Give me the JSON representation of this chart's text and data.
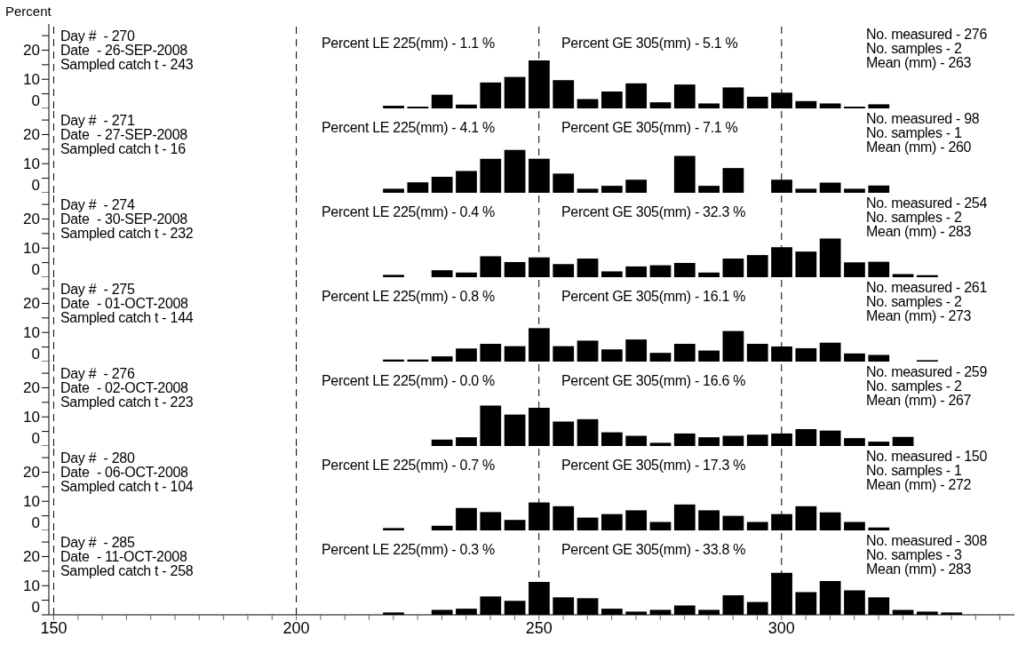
{
  "chart_data": [
    {
      "type": "histogram",
      "ylabel": "Percent",
      "bins": [
        217.5,
        222.5,
        227.5,
        232.5,
        237.5,
        242.5,
        247.5,
        252.5,
        257.5,
        262.5,
        267.5,
        272.5,
        277.5,
        282.5,
        287.5,
        292.5,
        297.5,
        302.5,
        307.5,
        312.5,
        317.5,
        322.5,
        327.5,
        332.5,
        337.5
      ],
      "values": [
        0.9,
        0.6,
        4.7,
        1.3,
        8.9,
        10.8,
        16.5,
        9.7,
        3.2,
        5.8,
        8.6,
        2.1,
        8.2,
        1.7,
        7.2,
        4.0,
        5.4,
        2.5,
        1.7,
        0.6,
        1.4,
        0,
        0,
        0
      ],
      "color": "#000000",
      "xlim": [
        149,
        348
      ],
      "ylim": [
        0,
        29
      ],
      "yticks": [
        0,
        {
          "value": 5,
          "label": null
        },
        10,
        {
          "value": 15,
          "label": null
        },
        20,
        {
          "value": 25,
          "label": null
        }
      ],
      "tick_labels": "y",
      "ref_lines": [
        {
          "axis": "x",
          "value": 150,
          "line_style": "dashed"
        },
        {
          "axis": "x",
          "value": 200,
          "line_style": "dashed"
        },
        {
          "axis": "x",
          "value": 250,
          "line_style": "dashed"
        },
        {
          "axis": "x",
          "value": 300,
          "line_style": "dashed"
        }
      ],
      "annotations": [
        "Day #  - 270",
        "Date  - 26-SEP-2008",
        "Sampled catch t - 243",
        "Percent LE 225(mm) - 1.1 %",
        "Percent GE 305(mm) - 5.1 %",
        "No. measured - 276",
        "No. samples - 2",
        "Mean (mm) - 263"
      ]
    },
    {
      "type": "histogram",
      "bins": [
        217.5,
        222.5,
        227.5,
        232.5,
        237.5,
        242.5,
        247.5,
        252.5,
        257.5,
        262.5,
        267.5,
        272.5,
        277.5,
        282.5,
        287.5,
        292.5,
        297.5,
        302.5,
        307.5,
        312.5,
        317.5,
        322.5,
        327.5,
        332.5,
        337.5
      ],
      "values": [
        1.4,
        3.6,
        5.5,
        7.5,
        11.7,
        14.7,
        11.7,
        6.6,
        1.4,
        2.4,
        4.5,
        0,
        12.7,
        2.4,
        8.5,
        0,
        4.5,
        1.4,
        3.5,
        1.4,
        2.5,
        0,
        0,
        0
      ],
      "color": "#000000",
      "xlim": [
        149,
        348
      ],
      "ylim": [
        0,
        29
      ],
      "yticks": [
        0,
        {
          "value": 5,
          "label": null
        },
        10,
        {
          "value": 15,
          "label": null
        },
        20,
        {
          "value": 25,
          "label": null
        }
      ],
      "tick_labels": "y",
      "ref_lines": [
        {
          "axis": "x",
          "value": 150,
          "line_style": "dashed"
        },
        {
          "axis": "x",
          "value": 200,
          "line_style": "dashed"
        },
        {
          "axis": "x",
          "value": 250,
          "line_style": "dashed"
        },
        {
          "axis": "x",
          "value": 300,
          "line_style": "dashed"
        }
      ],
      "annotations": [
        "Day #  - 271",
        "Date  - 27-SEP-2008",
        "Sampled catch t - 16",
        "Percent LE 225(mm) - 4.1 %",
        "Percent GE 305(mm) - 7.1 %",
        "No. measured - 98",
        "No. samples - 1",
        "Mean (mm) - 260"
      ]
    },
    {
      "type": "histogram",
      "bins": [
        217.5,
        222.5,
        227.5,
        232.5,
        237.5,
        242.5,
        247.5,
        252.5,
        257.5,
        262.5,
        267.5,
        272.5,
        277.5,
        282.5,
        287.5,
        292.5,
        297.5,
        302.5,
        307.5,
        312.5,
        317.5,
        322.5,
        327.5,
        332.5,
        337.5
      ],
      "values": [
        0.8,
        0,
        2.4,
        1.6,
        7.2,
        5.2,
        6.8,
        4.5,
        6.4,
        2.0,
        3.7,
        4.1,
        4.9,
        1.6,
        6.4,
        7.6,
        10.3,
        8.8,
        13.3,
        5.1,
        5.3,
        1.1,
        0.7,
        0
      ],
      "color": "#000000",
      "xlim": [
        149,
        348
      ],
      "ylim": [
        0,
        29
      ],
      "yticks": [
        0,
        {
          "value": 5,
          "label": null
        },
        10,
        {
          "value": 15,
          "label": null
        },
        20,
        {
          "value": 25,
          "label": null
        }
      ],
      "tick_labels": "y",
      "ref_lines": [
        {
          "axis": "x",
          "value": 150,
          "line_style": "dashed"
        },
        {
          "axis": "x",
          "value": 200,
          "line_style": "dashed"
        },
        {
          "axis": "x",
          "value": 250,
          "line_style": "dashed"
        },
        {
          "axis": "x",
          "value": 300,
          "line_style": "dashed"
        }
      ],
      "annotations": [
        "Day #  - 274",
        "Date  - 30-SEP-2008",
        "Sampled catch t - 232",
        "Percent LE 225(mm) - 0.4 %",
        "Percent GE 305(mm) - 32.3 %",
        "No. measured - 254",
        "No. samples - 2",
        "Mean (mm) - 283"
      ]
    },
    {
      "type": "histogram",
      "bins": [
        217.5,
        222.5,
        227.5,
        232.5,
        237.5,
        242.5,
        247.5,
        252.5,
        257.5,
        262.5,
        267.5,
        272.5,
        277.5,
        282.5,
        287.5,
        292.5,
        297.5,
        302.5,
        307.5,
        312.5,
        317.5,
        322.5,
        327.5,
        332.5,
        337.5
      ],
      "values": [
        0.7,
        0.7,
        1.8,
        4.5,
        6.1,
        5.3,
        11.5,
        5.3,
        7.2,
        4.2,
        7.6,
        3.0,
        6.1,
        3.8,
        10.5,
        6.1,
        5.2,
        4.6,
        6.5,
        2.8,
        2.3,
        0,
        0.5,
        0
      ],
      "color": "#000000",
      "xlim": [
        149,
        348
      ],
      "ylim": [
        0,
        29
      ],
      "yticks": [
        0,
        {
          "value": 5,
          "label": null
        },
        10,
        {
          "value": 15,
          "label": null
        },
        20,
        {
          "value": 25,
          "label": null
        }
      ],
      "tick_labels": "y",
      "ref_lines": [
        {
          "axis": "x",
          "value": 150,
          "line_style": "dashed"
        },
        {
          "axis": "x",
          "value": 200,
          "line_style": "dashed"
        },
        {
          "axis": "x",
          "value": 250,
          "line_style": "dashed"
        },
        {
          "axis": "x",
          "value": 300,
          "line_style": "dashed"
        }
      ],
      "annotations": [
        "Day #  - 275",
        "Date  - 01-OCT-2008",
        "Sampled catch t - 144",
        "Percent LE 225(mm) - 0.8 %",
        "Percent GE 305(mm) - 16.1 %",
        "No. measured - 261",
        "No. samples - 2",
        "Mean (mm) - 273"
      ]
    },
    {
      "type": "histogram",
      "bins": [
        217.5,
        222.5,
        227.5,
        232.5,
        237.5,
        242.5,
        247.5,
        252.5,
        257.5,
        262.5,
        267.5,
        272.5,
        277.5,
        282.5,
        287.5,
        292.5,
        297.5,
        302.5,
        307.5,
        312.5,
        317.5,
        322.5,
        327.5,
        332.5,
        337.5
      ],
      "values": [
        0,
        0,
        2.2,
        3.0,
        13.9,
        10.8,
        13.1,
        8.4,
        9.2,
        4.7,
        3.5,
        1.1,
        4.3,
        3.0,
        3.5,
        3.9,
        4.3,
        5.8,
        5.3,
        2.7,
        1.5,
        3.1,
        0,
        0
      ],
      "color": "#000000",
      "xlim": [
        149,
        348
      ],
      "ylim": [
        0,
        29
      ],
      "yticks": [
        0,
        {
          "value": 5,
          "label": null
        },
        10,
        {
          "value": 15,
          "label": null
        },
        20,
        {
          "value": 25,
          "label": null
        }
      ],
      "tick_labels": "y",
      "ref_lines": [
        {
          "axis": "x",
          "value": 150,
          "line_style": "dashed"
        },
        {
          "axis": "x",
          "value": 200,
          "line_style": "dashed"
        },
        {
          "axis": "x",
          "value": 250,
          "line_style": "dashed"
        },
        {
          "axis": "x",
          "value": 300,
          "line_style": "dashed"
        }
      ],
      "annotations": [
        "Day #  - 276",
        "Date  - 02-OCT-2008",
        "Sampled catch t - 223",
        "Percent LE 225(mm) - 0.0 %",
        "Percent GE 305(mm) - 16.6 %",
        "No. measured - 259",
        "No. samples - 2",
        "Mean (mm) - 267"
      ]
    },
    {
      "type": "histogram",
      "bins": [
        217.5,
        222.5,
        227.5,
        232.5,
        237.5,
        242.5,
        247.5,
        252.5,
        257.5,
        262.5,
        267.5,
        272.5,
        277.5,
        282.5,
        287.5,
        292.5,
        297.5,
        302.5,
        307.5,
        312.5,
        317.5,
        322.5,
        327.5,
        332.5,
        337.5
      ],
      "values": [
        0.8,
        0,
        1.6,
        7.7,
        6.3,
        3.6,
        9.6,
        8.3,
        4.4,
        5.6,
        6.9,
        2.9,
        8.9,
        6.9,
        5.0,
        2.9,
        5.6,
        8.3,
        6.2,
        2.9,
        1.0,
        0,
        0,
        0
      ],
      "color": "#000000",
      "xlim": [
        149,
        348
      ],
      "ylim": [
        0,
        29
      ],
      "yticks": [
        0,
        {
          "value": 5,
          "label": null
        },
        10,
        {
          "value": 15,
          "label": null
        },
        20,
        {
          "value": 25,
          "label": null
        }
      ],
      "tick_labels": "y",
      "ref_lines": [
        {
          "axis": "x",
          "value": 150,
          "line_style": "dashed"
        },
        {
          "axis": "x",
          "value": 200,
          "line_style": "dashed"
        },
        {
          "axis": "x",
          "value": 250,
          "line_style": "dashed"
        },
        {
          "axis": "x",
          "value": 300,
          "line_style": "dashed"
        }
      ],
      "annotations": [
        "Day #  - 280",
        "Date  - 06-OCT-2008",
        "Sampled catch t - 104",
        "Percent LE 225(mm) - 0.7 %",
        "Percent GE 305(mm) - 17.3 %",
        "No. measured - 150",
        "No. samples - 1",
        "Mean (mm) - 272"
      ]
    },
    {
      "type": "histogram",
      "bins": [
        217.5,
        222.5,
        227.5,
        232.5,
        237.5,
        242.5,
        247.5,
        252.5,
        257.5,
        262.5,
        267.5,
        272.5,
        277.5,
        282.5,
        287.5,
        292.5,
        297.5,
        302.5,
        307.5,
        312.5,
        317.5,
        322.5,
        327.5,
        332.5,
        337.5
      ],
      "values": [
        0.8,
        0,
        1.7,
        2.1,
        6.3,
        4.8,
        11.3,
        6.0,
        5.7,
        2.1,
        1.1,
        1.7,
        3.2,
        1.7,
        6.7,
        4.4,
        14.4,
        7.8,
        11.6,
        8.4,
        6.0,
        1.7,
        1.1,
        0.8
      ],
      "color": "#000000",
      "xlim": [
        149,
        348
      ],
      "xticks": [
        150,
        {
          "value": 155,
          "label": null
        },
        {
          "value": 160,
          "label": null
        },
        {
          "value": 165,
          "label": null
        },
        {
          "value": 170,
          "label": null
        },
        {
          "value": 175,
          "label": null
        },
        {
          "value": 180,
          "label": null
        },
        {
          "value": 185,
          "label": null
        },
        {
          "value": 190,
          "label": null
        },
        {
          "value": 195,
          "label": null
        },
        200,
        {
          "value": 205,
          "label": null
        },
        {
          "value": 210,
          "label": null
        },
        {
          "value": 215,
          "label": null
        },
        {
          "value": 220,
          "label": null
        },
        {
          "value": 225,
          "label": null
        },
        {
          "value": 230,
          "label": null
        },
        {
          "value": 235,
          "label": null
        },
        {
          "value": 240,
          "label": null
        },
        {
          "value": 245,
          "label": null
        },
        250,
        {
          "value": 255,
          "label": null
        },
        {
          "value": 260,
          "label": null
        },
        {
          "value": 265,
          "label": null
        },
        {
          "value": 270,
          "label": null
        },
        {
          "value": 275,
          "label": null
        },
        {
          "value": 280,
          "label": null
        },
        {
          "value": 285,
          "label": null
        },
        {
          "value": 290,
          "label": null
        },
        {
          "value": 295,
          "label": null
        },
        300,
        {
          "value": 305,
          "label": null
        },
        {
          "value": 310,
          "label": null
        },
        {
          "value": 315,
          "label": null
        },
        {
          "value": 320,
          "label": null
        },
        {
          "value": 325,
          "label": null
        },
        {
          "value": 330,
          "label": null
        },
        {
          "value": 335,
          "label": null
        },
        {
          "value": 340,
          "label": null
        },
        {
          "value": 345,
          "label": null
        }
      ],
      "ylim": [
        0,
        29
      ],
      "yticks": [
        0,
        {
          "value": 5,
          "label": null
        },
        10,
        {
          "value": 15,
          "label": null
        },
        20,
        {
          "value": 25,
          "label": null
        }
      ],
      "ref_lines": [
        {
          "axis": "x",
          "value": 150,
          "line_style": "dashed"
        },
        {
          "axis": "x",
          "value": 200,
          "line_style": "dashed"
        },
        {
          "axis": "x",
          "value": 250,
          "line_style": "dashed"
        },
        {
          "axis": "x",
          "value": 300,
          "line_style": "dashed"
        }
      ],
      "annotations": [
        "Day #  - 285",
        "Date  - 11-OCT-2008",
        "Sampled catch t - 258",
        "Percent LE 225(mm) - 0.3 %",
        "Percent GE 305(mm) - 33.8 %",
        "No. measured - 308",
        "No. samples - 3",
        "Mean (mm) - 283"
      ]
    }
  ]
}
